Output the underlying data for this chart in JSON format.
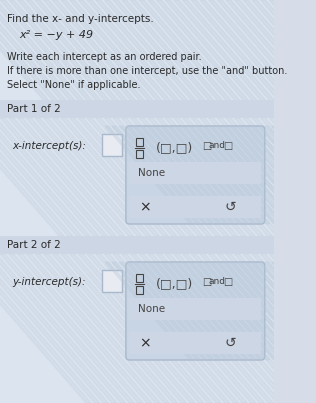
{
  "title_line1": "Find the x- and y-intercepts.",
  "equation": "x² = −y + 49",
  "instructions": "Write each intercept as an ordered pair.\nIf there is more than one intercept, use the \"and\" button.\nSelect \"None\" if applicable.",
  "part1_label": "Part 1 of 2",
  "part1_intercept_label": "x-intercept(s):",
  "part2_label": "Part 2 of 2",
  "part2_intercept_label": "y-intercept(s):",
  "fraction_text": "□\n―\n□",
  "ordered_pair_text": "(□,□)",
  "and_text": "□and□",
  "none_text": "None",
  "x_symbol": "×",
  "undo_symbol": "↺",
  "bg_color": "#d6dde8",
  "panel_bg": "#dce4ef",
  "box_bg": "#cdd6e4",
  "stripe_color1": "#b8c8d8",
  "stripe_color2": "#cdd6e4",
  "white": "#ffffff",
  "dark_text": "#2a2a2a",
  "medium_text": "#444444",
  "light_text": "#555555",
  "border_color": "#aab8cc",
  "input_box_color": "#e8ecf2",
  "answer_box_bg": "#c8d5e5"
}
